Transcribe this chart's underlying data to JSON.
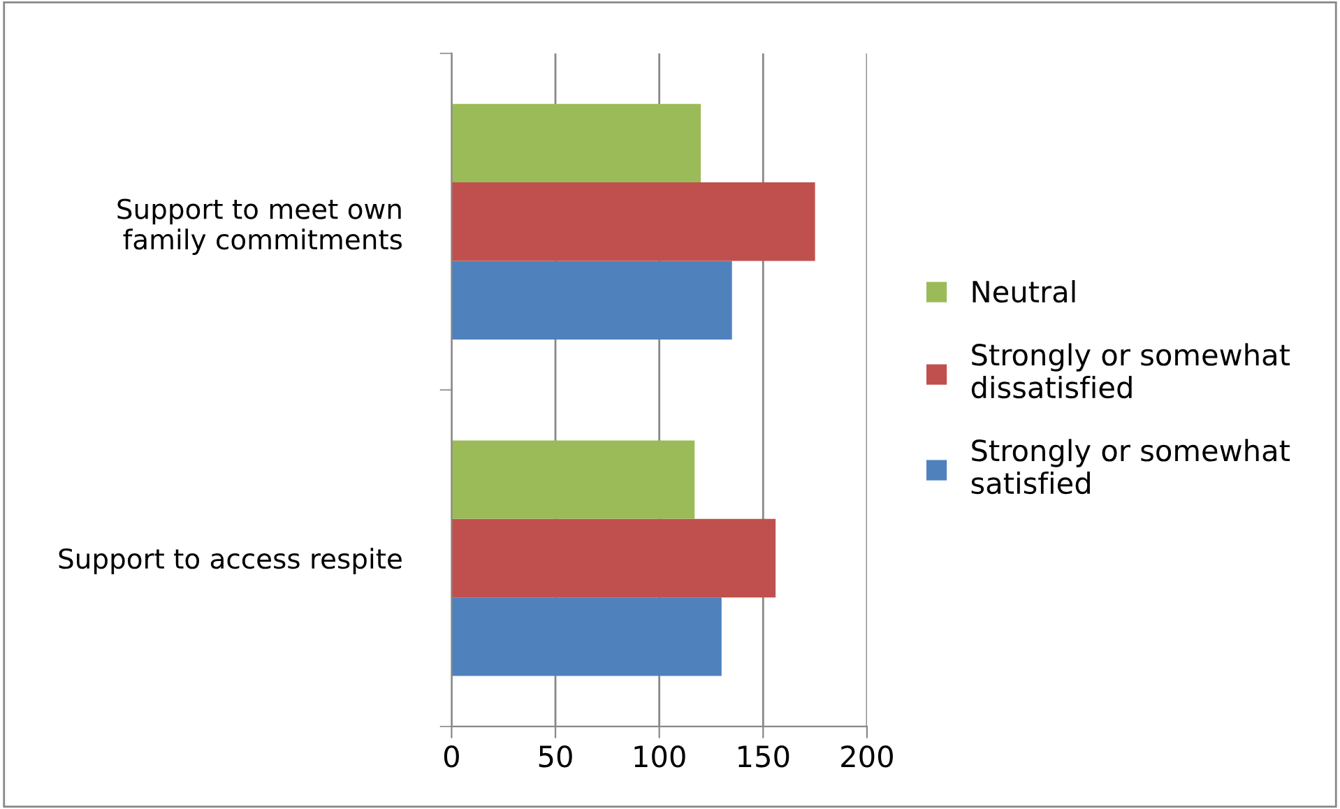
{
  "chart_data": {
    "type": "bar",
    "orientation": "horizontal",
    "categories": [
      "Support to meet own\nfamily commitments",
      "Support to access respite"
    ],
    "series": [
      {
        "name": "Strongly or somewhat\nsatisfied",
        "color": "#4f81bd",
        "values": [
          135,
          130
        ]
      },
      {
        "name": "Strongly or somewhat\ndissatisfied",
        "color": "#c0504d",
        "values": [
          175,
          156
        ]
      },
      {
        "name": "Neutral",
        "color": "#9bbb59",
        "values": [
          120,
          117
        ]
      }
    ],
    "xlim": [
      0,
      200
    ],
    "xticks": [
      0,
      50,
      100,
      150,
      200
    ],
    "grid": "x",
    "legend": "right"
  }
}
